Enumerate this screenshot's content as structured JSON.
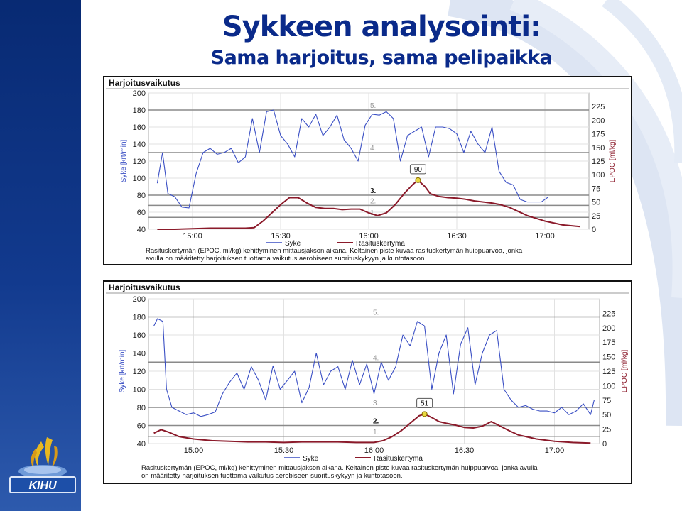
{
  "slide": {
    "title": "Sykkeen analysointi:",
    "subtitle": "Sama harjoitus, sama pelipaikka",
    "logo_text": "KIHU",
    "colors": {
      "sidebar": "#0b2f7a",
      "title": "#0a2a8a",
      "heart_rate": "#3a4fc4",
      "epoc": "#8b1a2a",
      "grid": "#888888",
      "peak": "#e8d840"
    }
  },
  "chart_data": [
    {
      "type": "line",
      "title": "Harjoitusvaikutus",
      "ylabel_left": "Syke [krt/min]",
      "ylabel_right": "EPOC [ml/kg]",
      "ylim_left": [
        40,
        200
      ],
      "ylim_right": [
        0,
        250
      ],
      "yticks_left": [
        "40",
        "60",
        "80",
        "100",
        "120",
        "140",
        "160",
        "180",
        "200"
      ],
      "yticks_right": [
        "0",
        "25",
        "50",
        "75",
        "100",
        "125",
        "150",
        "175",
        "200",
        "225"
      ],
      "xlim": [
        14.75,
        17.25
      ],
      "xticks": [
        {
          "x": 15.0,
          "label": "15:00"
        },
        {
          "x": 15.5,
          "label": "15:30"
        },
        {
          "x": 16.0,
          "label": "16:00"
        },
        {
          "x": 16.5,
          "label": "16:30"
        },
        {
          "x": 17.0,
          "label": "17:00"
        }
      ],
      "zones": [
        {
          "label": "1.",
          "value": 54,
          "bold": false
        },
        {
          "label": "2.",
          "value": 68,
          "bold": false
        },
        {
          "label": "3.",
          "value": 80,
          "bold": true
        },
        {
          "label": "4.",
          "value": 130,
          "bold": false
        },
        {
          "label": "5.",
          "value": 180,
          "bold": false
        }
      ],
      "peak": {
        "x": 16.28,
        "value": 90,
        "label": "90"
      },
      "legend": [
        "Syke",
        "Rasituskertymä"
      ],
      "caption": [
        "Rasituskertymän (EPOC, ml/kg) kehittyminen mittausjakson aikana. Keltainen piste kuvaa rasituskertymän huippuarvoa, jonka",
        "avulla on määritetty harjoituksen tuottama vaikutus aerobiseen suorituskykyyn ja kuntotasoon."
      ],
      "series": [
        {
          "name": "Syke",
          "axis": "left",
          "x": [
            14.8,
            14.83,
            14.86,
            14.9,
            14.94,
            14.98,
            15.02,
            15.06,
            15.1,
            15.14,
            15.18,
            15.22,
            15.26,
            15.3,
            15.34,
            15.38,
            15.42,
            15.46,
            15.5,
            15.54,
            15.58,
            15.62,
            15.66,
            15.7,
            15.74,
            15.78,
            15.82,
            15.86,
            15.9,
            15.94,
            15.98,
            16.02,
            16.06,
            16.1,
            16.14,
            16.18,
            16.22,
            16.26,
            16.3,
            16.34,
            16.38,
            16.42,
            16.46,
            16.5,
            16.54,
            16.58,
            16.62,
            16.66,
            16.7,
            16.74,
            16.78,
            16.82,
            16.86,
            16.9,
            16.94,
            16.98,
            17.02
          ],
          "y": [
            94,
            130,
            82,
            78,
            66,
            65,
            105,
            130,
            135,
            128,
            130,
            135,
            118,
            125,
            170,
            130,
            178,
            180,
            150,
            140,
            125,
            170,
            160,
            175,
            150,
            160,
            174,
            145,
            135,
            120,
            162,
            175,
            174,
            178,
            170,
            120,
            150,
            155,
            160,
            125,
            160,
            160,
            158,
            152,
            130,
            155,
            140,
            130,
            160,
            108,
            95,
            92,
            75,
            72,
            72,
            72,
            78
          ]
        },
        {
          "name": "Rasituskertymä",
          "axis": "right",
          "x": [
            14.8,
            14.9,
            15.0,
            15.1,
            15.2,
            15.3,
            15.35,
            15.4,
            15.45,
            15.5,
            15.55,
            15.6,
            15.65,
            15.7,
            15.75,
            15.8,
            15.85,
            15.9,
            15.95,
            16.0,
            16.05,
            16.1,
            16.15,
            16.2,
            16.25,
            16.28,
            16.32,
            16.35,
            16.4,
            16.45,
            16.5,
            16.55,
            16.6,
            16.65,
            16.7,
            16.75,
            16.8,
            16.9,
            17.0,
            17.1,
            17.2
          ],
          "y": [
            0,
            0,
            1,
            2,
            2,
            2,
            3,
            15,
            30,
            45,
            58,
            58,
            48,
            40,
            38,
            38,
            36,
            37,
            37,
            30,
            25,
            30,
            45,
            65,
            82,
            90,
            78,
            65,
            60,
            58,
            57,
            55,
            52,
            50,
            48,
            45,
            40,
            25,
            15,
            8,
            5
          ]
        }
      ]
    },
    {
      "type": "line",
      "title": "Harjoitusvaikutus",
      "ylabel_left": "Syke [krt/min]",
      "ylabel_right": "EPOC [ml/kg]",
      "ylim_left": [
        40,
        200
      ],
      "ylim_right": [
        0,
        250
      ],
      "yticks_left": [
        "40",
        "60",
        "80",
        "100",
        "120",
        "140",
        "160",
        "180",
        "200"
      ],
      "yticks_right": [
        "0",
        "25",
        "50",
        "75",
        "100",
        "125",
        "150",
        "175",
        "200",
        "225"
      ],
      "xlim": [
        14.75,
        17.25
      ],
      "xticks": [
        {
          "x": 15.0,
          "label": "15:00"
        },
        {
          "x": 15.5,
          "label": "15:30"
        },
        {
          "x": 16.0,
          "label": "16:00"
        },
        {
          "x": 16.5,
          "label": "16:30"
        },
        {
          "x": 17.0,
          "label": "17:00"
        }
      ],
      "zones": [
        {
          "label": "1.",
          "value": 48,
          "bold": false
        },
        {
          "label": "2.",
          "value": 60,
          "bold": true
        },
        {
          "label": "3.",
          "value": 80,
          "bold": false
        },
        {
          "label": "4.",
          "value": 130,
          "bold": false
        },
        {
          "label": "5.",
          "value": 180,
          "bold": false
        }
      ],
      "peak": {
        "x": 16.28,
        "value": 51,
        "label": "51"
      },
      "legend": [
        "Syke",
        "Rasituskertymä"
      ],
      "caption": [
        "Rasituskertymän (EPOC, ml/kg) kehittyminen mittausjakson aikana. Keltainen piste kuvaa rasituskertymän huippuarvoa, jonka avulla",
        "on määritetty harjoituksen tuottama vaikutus aerobiseen suorituskykyyn ja kuntotasoon."
      ],
      "series": [
        {
          "name": "Syke",
          "axis": "left",
          "x": [
            14.78,
            14.8,
            14.83,
            14.85,
            14.88,
            14.92,
            14.96,
            15.0,
            15.04,
            15.08,
            15.12,
            15.16,
            15.2,
            15.24,
            15.28,
            15.32,
            15.36,
            15.4,
            15.44,
            15.48,
            15.52,
            15.56,
            15.6,
            15.64,
            15.68,
            15.72,
            15.76,
            15.8,
            15.84,
            15.88,
            15.92,
            15.96,
            16.0,
            16.04,
            16.08,
            16.12,
            16.16,
            16.2,
            16.24,
            16.28,
            16.32,
            16.36,
            16.4,
            16.44,
            16.48,
            16.52,
            16.56,
            16.6,
            16.64,
            16.68,
            16.72,
            16.76,
            16.8,
            16.84,
            16.88,
            16.92,
            16.96,
            17.0,
            17.04,
            17.08,
            17.12,
            17.16,
            17.2,
            17.22
          ],
          "y": [
            170,
            178,
            175,
            100,
            80,
            76,
            72,
            74,
            70,
            72,
            75,
            95,
            108,
            118,
            100,
            125,
            110,
            88,
            126,
            100,
            110,
            120,
            85,
            102,
            140,
            105,
            120,
            125,
            100,
            132,
            105,
            128,
            95,
            130,
            110,
            125,
            160,
            148,
            175,
            170,
            100,
            140,
            160,
            95,
            150,
            168,
            105,
            140,
            160,
            165,
            100,
            88,
            80,
            82,
            78,
            76,
            76,
            74,
            80,
            72,
            76,
            84,
            72,
            88
          ]
        },
        {
          "name": "Rasituskertymä",
          "axis": "right",
          "x": [
            14.78,
            14.82,
            14.86,
            14.92,
            15.0,
            15.1,
            15.2,
            15.3,
            15.4,
            15.5,
            15.6,
            15.7,
            15.8,
            15.9,
            16.0,
            16.05,
            16.1,
            16.15,
            16.2,
            16.25,
            16.28,
            16.32,
            16.36,
            16.4,
            16.45,
            16.5,
            16.55,
            16.6,
            16.65,
            16.7,
            16.75,
            16.8,
            16.9,
            17.0,
            17.1,
            17.2
          ],
          "y": [
            18,
            24,
            20,
            12,
            8,
            5,
            4,
            3,
            3,
            2,
            3,
            3,
            3,
            2,
            2,
            5,
            12,
            22,
            35,
            48,
            51,
            45,
            38,
            35,
            32,
            28,
            27,
            30,
            38,
            30,
            22,
            15,
            8,
            4,
            2,
            1
          ]
        }
      ]
    }
  ]
}
